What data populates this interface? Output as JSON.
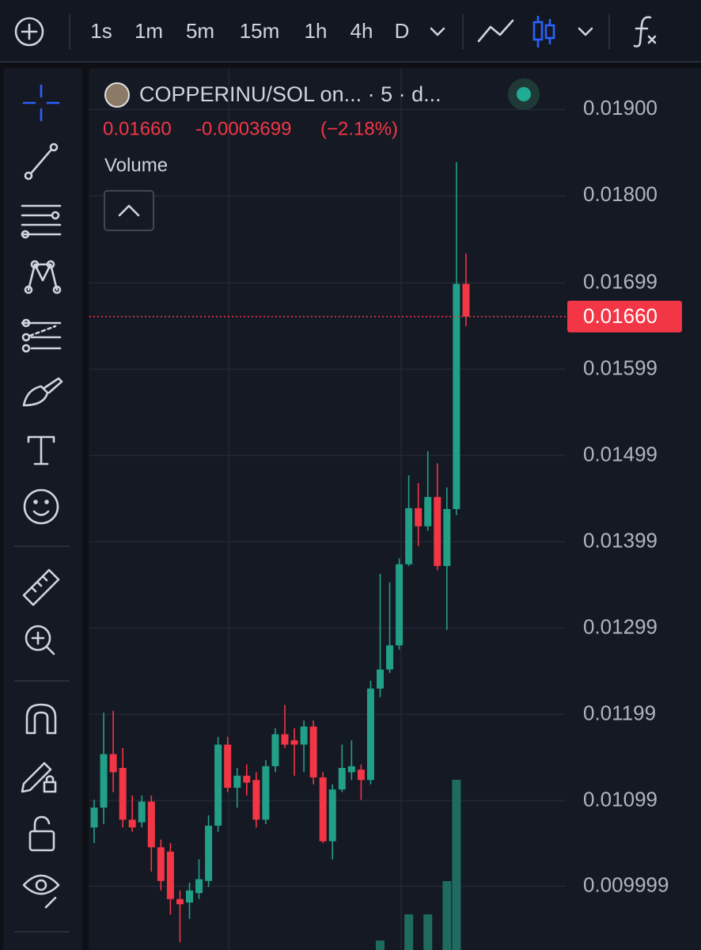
{
  "toolbar": {
    "timeframes": [
      {
        "label": "1s"
      },
      {
        "label": "1m"
      },
      {
        "label": "5m",
        "selected": true
      },
      {
        "label": "15m"
      },
      {
        "label": "1h"
      },
      {
        "label": "4h"
      },
      {
        "label": "D"
      }
    ]
  },
  "header": {
    "symbol": "COPPERINU/SOL on... · 5 · d...",
    "change": "-0.0003699",
    "change_pct": "(−2.18%)",
    "study": "Volume"
  },
  "chart_data": {
    "type": "candlestick",
    "up_color": "#22a087",
    "down_color": "#f23645",
    "volume_color": "#1f6b5f",
    "ylim": [
      0.00926,
      0.01948
    ],
    "yticks": [
      {
        "value": 0.019,
        "label": "0.01900"
      },
      {
        "value": 0.018,
        "label": "0.01800"
      },
      {
        "value": 0.01699,
        "label": "0.01699"
      },
      {
        "value": 0.01599,
        "label": "0.01599"
      },
      {
        "value": 0.01499,
        "label": "0.01499"
      },
      {
        "value": 0.01399,
        "label": "0.01399"
      },
      {
        "value": 0.01299,
        "label": "0.01299"
      },
      {
        "value": 0.01199,
        "label": "0.01199"
      },
      {
        "value": 0.01099,
        "label": "0.01099"
      },
      {
        "value": 0.009999,
        "label": "0.009999"
      }
    ],
    "grid": true,
    "last_price": {
      "value": 0.0166,
      "label": "0.01660"
    },
    "candles": [
      {
        "open": 0.01068,
        "high": 0.011,
        "low": 0.0105,
        "close": 0.01091
      },
      {
        "open": 0.01091,
        "high": 0.01201,
        "low": 0.01072,
        "close": 0.01153
      },
      {
        "open": 0.01153,
        "high": 0.01203,
        "low": 0.01109,
        "close": 0.01132
      },
      {
        "open": 0.01137,
        "high": 0.0116,
        "low": 0.01068,
        "close": 0.01077
      },
      {
        "open": 0.01077,
        "high": 0.01105,
        "low": 0.01063,
        "close": 0.01068
      },
      {
        "open": 0.01074,
        "high": 0.01105,
        "low": 0.01068,
        "close": 0.01098
      },
      {
        "open": 0.01098,
        "high": 0.01105,
        "low": 0.01017,
        "close": 0.01045
      },
      {
        "open": 0.01045,
        "high": 0.01054,
        "low": 0.00995,
        "close": 0.01006
      },
      {
        "open": 0.0104,
        "high": 0.0105,
        "low": 0.00967,
        "close": 0.00985
      },
      {
        "open": 0.00985,
        "high": 0.00995,
        "low": 0.00935,
        "close": 0.00979
      },
      {
        "open": 0.00981,
        "high": 0.01004,
        "low": 0.00962,
        "close": 0.00995
      },
      {
        "open": 0.00992,
        "high": 0.01031,
        "low": 0.00985,
        "close": 0.01008
      },
      {
        "open": 0.01006,
        "high": 0.01082,
        "low": 0.00999,
        "close": 0.0107
      },
      {
        "open": 0.0107,
        "high": 0.01173,
        "low": 0.01063,
        "close": 0.01164
      },
      {
        "open": 0.01164,
        "high": 0.01173,
        "low": 0.01109,
        "close": 0.01114
      },
      {
        "open": 0.01114,
        "high": 0.01137,
        "low": 0.01091,
        "close": 0.01128
      },
      {
        "open": 0.01128,
        "high": 0.01141,
        "low": 0.01105,
        "close": 0.0112
      },
      {
        "open": 0.01123,
        "high": 0.01132,
        "low": 0.01068,
        "close": 0.01077
      },
      {
        "open": 0.01077,
        "high": 0.01146,
        "low": 0.01072,
        "close": 0.01139
      },
      {
        "open": 0.01139,
        "high": 0.01183,
        "low": 0.01132,
        "close": 0.01176
      },
      {
        "open": 0.01176,
        "high": 0.0121,
        "low": 0.0116,
        "close": 0.01164
      },
      {
        "open": 0.01169,
        "high": 0.01183,
        "low": 0.01128,
        "close": 0.01164
      },
      {
        "open": 0.01164,
        "high": 0.01192,
        "low": 0.01132,
        "close": 0.01185
      },
      {
        "open": 0.01185,
        "high": 0.01192,
        "low": 0.01118,
        "close": 0.01126
      },
      {
        "open": 0.01126,
        "high": 0.01132,
        "low": 0.0105,
        "close": 0.01052
      },
      {
        "open": 0.01052,
        "high": 0.01118,
        "low": 0.01031,
        "close": 0.01112
      },
      {
        "open": 0.01112,
        "high": 0.01164,
        "low": 0.01109,
        "close": 0.01137
      },
      {
        "open": 0.01132,
        "high": 0.01169,
        "low": 0.01123,
        "close": 0.01139
      },
      {
        "open": 0.01135,
        "high": 0.01141,
        "low": 0.011,
        "close": 0.01123
      },
      {
        "open": 0.01123,
        "high": 0.01238,
        "low": 0.01118,
        "close": 0.01229
      },
      {
        "open": 0.01229,
        "high": 0.01362,
        "low": 0.01219,
        "close": 0.01251
      },
      {
        "open": 0.01251,
        "high": 0.01352,
        "low": 0.01247,
        "close": 0.01279
      },
      {
        "open": 0.01279,
        "high": 0.0138,
        "low": 0.01274,
        "close": 0.01373
      },
      {
        "open": 0.01373,
        "high": 0.01476,
        "low": 0.01371,
        "close": 0.01438
      },
      {
        "open": 0.01438,
        "high": 0.01467,
        "low": 0.01394,
        "close": 0.01417
      },
      {
        "open": 0.01417,
        "high": 0.01504,
        "low": 0.01412,
        "close": 0.01451
      },
      {
        "open": 0.01451,
        "high": 0.0149,
        "low": 0.01366,
        "close": 0.01371
      },
      {
        "open": 0.01371,
        "high": 0.01462,
        "low": 0.01297,
        "close": 0.01437
      },
      {
        "open": 0.01437,
        "high": 0.01839,
        "low": 0.0143,
        "close": 0.01698
      },
      {
        "open": 0.01698,
        "high": 0.01733,
        "low": 0.01649,
        "close": 0.0166
      }
    ],
    "volume": [
      null,
      null,
      null,
      null,
      null,
      null,
      null,
      null,
      null,
      null,
      null,
      null,
      null,
      null,
      null,
      null,
      null,
      null,
      null,
      null,
      null,
      null,
      null,
      null,
      null,
      null,
      null,
      null,
      null,
      null,
      12,
      null,
      null,
      45,
      null,
      45,
      null,
      87,
      215,
      null
    ]
  }
}
